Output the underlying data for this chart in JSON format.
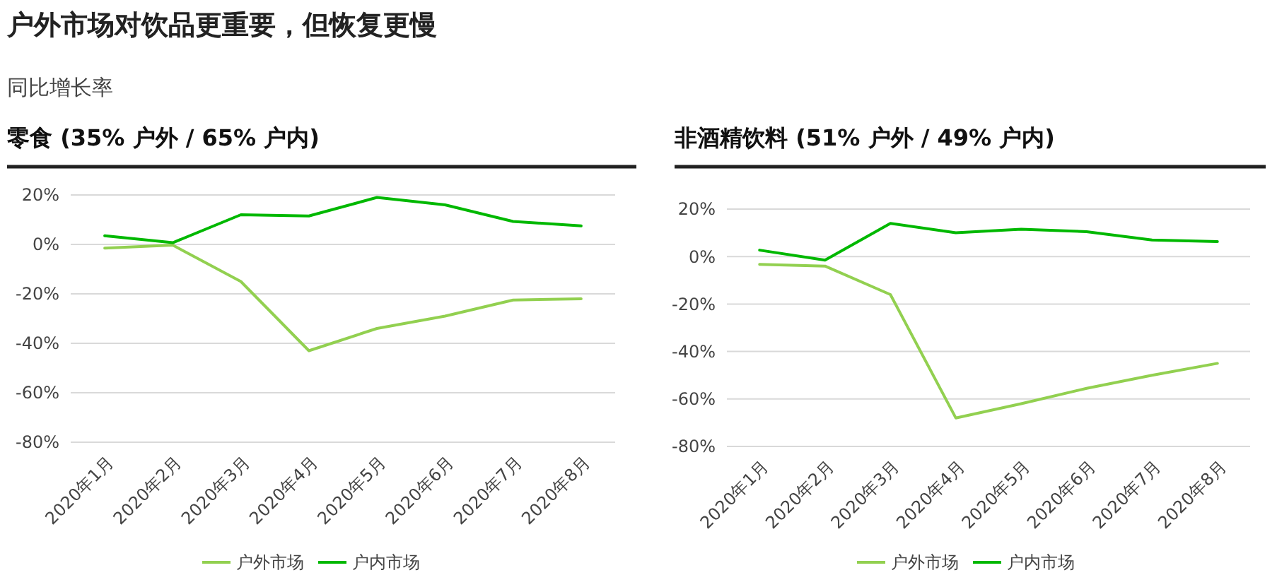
{
  "chart_data": [
    {
      "type": "line",
      "title": "零食 (35% 户外 / 65% 户内)",
      "annotations": [
        "户外市场对饮品更重要，但恢复更慢",
        "同比增长率"
      ],
      "categories": [
        "2020年1月",
        "2020年2月",
        "2020年3月",
        "2020年4月",
        "2020年5月",
        "2020年6月",
        "2020年7月",
        "2020年8月"
      ],
      "series": [
        {
          "name": "户外市场",
          "color": "#92d050",
          "values": [
            -1.5,
            -0.3,
            -15,
            -43,
            -34,
            -29,
            -22.5,
            -22
          ]
        },
        {
          "name": "户内市场",
          "color": "#00b800",
          "values": [
            3.5,
            0.7,
            12,
            11.5,
            19,
            16,
            9.3,
            7.5
          ]
        }
      ],
      "ylim": [
        -80,
        20
      ],
      "yticks": [
        {
          "value": 20,
          "label": "20%"
        },
        {
          "value": 0,
          "label": "0%"
        },
        {
          "value": -20,
          "label": "-20%"
        },
        {
          "value": -40,
          "label": "-40%"
        },
        {
          "value": -60,
          "label": "-60%"
        },
        {
          "value": -80,
          "label": "-80%"
        }
      ],
      "grid": "y",
      "legend": "bottom",
      "marker": "none"
    },
    {
      "type": "line",
      "title": "非酒精饮料 (51% 户外 / 49% 户内)",
      "categories": [
        "2020年1月",
        "2020年2月",
        "2020年3月",
        "2020年4月",
        "2020年5月",
        "2020年6月",
        "2020年7月",
        "2020年8月"
      ],
      "series": [
        {
          "name": "户外市场",
          "color": "#92d050",
          "values": [
            -3.3,
            -4,
            -16,
            -68,
            -62,
            -55.5,
            -50,
            -45
          ]
        },
        {
          "name": "户内市场",
          "color": "#00b800",
          "values": [
            2.7,
            -1.5,
            14,
            10,
            11.5,
            10.5,
            7,
            6.3
          ]
        }
      ],
      "ylim": [
        -80,
        20
      ],
      "yticks": [
        {
          "value": 20,
          "label": "20%"
        },
        {
          "value": 0,
          "label": "0%"
        },
        {
          "value": -20,
          "label": "-20%"
        },
        {
          "value": -40,
          "label": "-40%"
        },
        {
          "value": -60,
          "label": "-60%"
        },
        {
          "value": -80,
          "label": "-80%"
        }
      ],
      "grid": "y",
      "legend": "bottom",
      "marker": "none"
    }
  ]
}
